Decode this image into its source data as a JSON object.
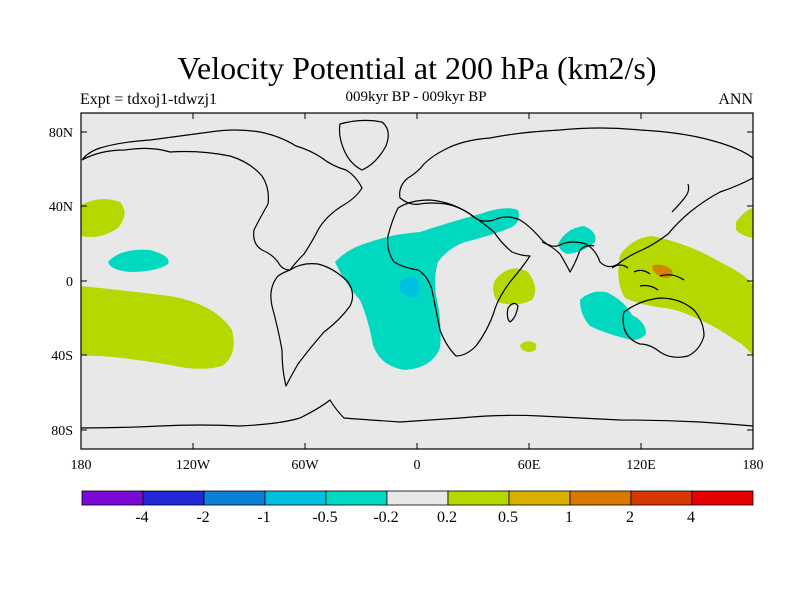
{
  "title": "Velocity Potential at 200 hPa (km2/s)",
  "subtitle": "009kyr BP - 009kyr BP",
  "left_label": "Expt = tdxoj1-tdwzj1",
  "right_label": "ANN",
  "axes": {
    "x_ticks": [
      "180",
      "120W",
      "60W",
      "0",
      "60E",
      "120E",
      "180"
    ],
    "y_ticks": [
      "80N",
      "40N",
      "0",
      "40S",
      "80S"
    ]
  },
  "colorbar": {
    "labels": [
      "-4",
      "-2",
      "-1",
      "-0.5",
      "-0.2",
      "0.2",
      "0.5",
      "1",
      "2",
      "4"
    ],
    "colors": [
      "#7a0ad8",
      "#2028d8",
      "#0a80d8",
      "#00c0e0",
      "#00d8c0",
      "#e8e8e8",
      "#b4d800",
      "#d8b000",
      "#d87800",
      "#d83800",
      "#e80000"
    ]
  },
  "colors": {
    "background": "#e8e8e8",
    "negative_fill": "#00d8c0",
    "positive_fill": "#b4d800",
    "deeper_negative": "#00c0e0",
    "deeper_positive": "#d87800"
  }
}
